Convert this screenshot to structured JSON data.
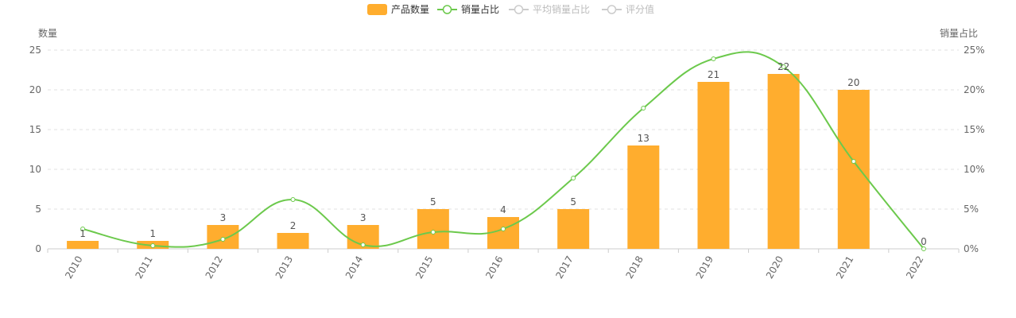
{
  "legend": {
    "items": [
      {
        "name": "产品数量",
        "type": "bar",
        "active": true
      },
      {
        "name": "销量占比",
        "type": "line",
        "active": true
      },
      {
        "name": "平均销量占比",
        "type": "line",
        "active": false
      },
      {
        "name": "评分值",
        "type": "line",
        "active": false
      }
    ]
  },
  "colors": {
    "bar": "#ffad2e",
    "line": "#6cc94c",
    "inactive": "#cccccc",
    "grid": "#e0e0e0",
    "axis": "#cccccc"
  },
  "chart_data": {
    "type": "bar",
    "categories": [
      "2010",
      "2011",
      "2012",
      "2013",
      "2014",
      "2015",
      "2016",
      "2017",
      "2018",
      "2019",
      "2020",
      "2021",
      "2022"
    ],
    "series": [
      {
        "name": "产品数量",
        "type": "bar",
        "axis": "left",
        "values": [
          1,
          1,
          3,
          2,
          3,
          5,
          4,
          5,
          13,
          21,
          22,
          20,
          0
        ]
      },
      {
        "name": "销量占比",
        "type": "line",
        "axis": "right",
        "unit": "%",
        "values": [
          2.5,
          0.4,
          1.2,
          6.2,
          0.5,
          2.1,
          2.5,
          8.9,
          17.7,
          23.9,
          22.9,
          11.0,
          0.0
        ]
      }
    ],
    "y_left": {
      "label": "数量",
      "ylim": [
        0,
        25
      ],
      "ticks": [
        "0",
        "5",
        "10",
        "15",
        "20",
        "25"
      ]
    },
    "y_right": {
      "label": "销量占比",
      "ylim": [
        0,
        25
      ],
      "ticks": [
        "0%",
        "5%",
        "10%",
        "15%",
        "20%",
        "25%"
      ]
    },
    "grid": true,
    "legend_position": "top-center"
  }
}
